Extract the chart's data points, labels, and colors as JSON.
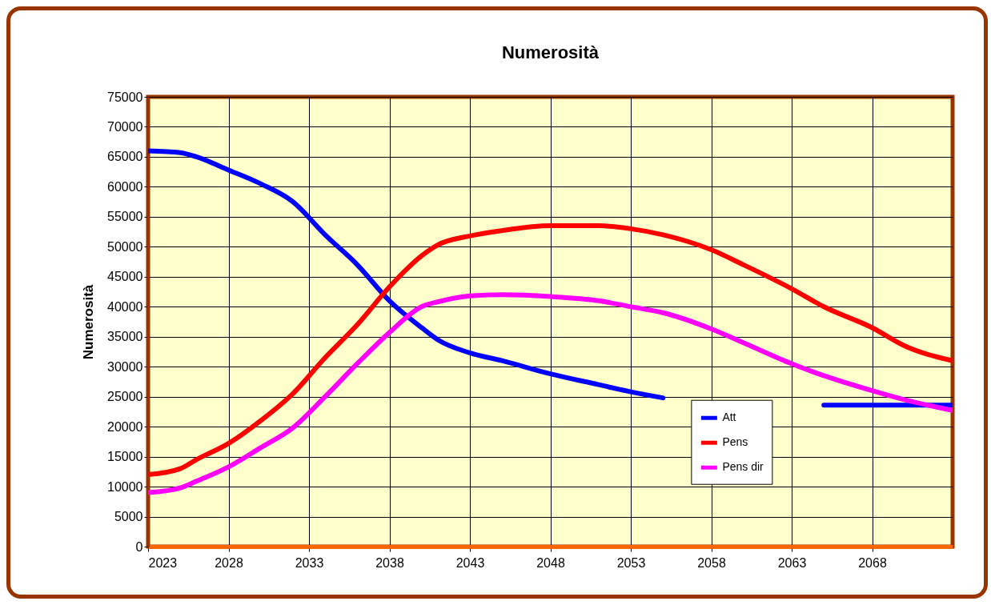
{
  "chart_data": {
    "type": "line",
    "title": "Numerosità",
    "ylabel": "Numerosità",
    "x": [
      2023,
      2025,
      2026,
      2028,
      2030,
      2032,
      2034,
      2036,
      2038,
      2040,
      2041,
      2043,
      2045,
      2048,
      2051,
      2053,
      2055,
      2058,
      2060,
      2063,
      2065,
      2068,
      2070,
      2073
    ],
    "series": [
      {
        "name": "Att",
        "color": "#0000ff",
        "values": [
          66000,
          65700,
          65000,
          62800,
          60500,
          57500,
          52000,
          47000,
          41000,
          36500,
          34500,
          32300,
          31000,
          28800,
          27000,
          25800,
          24800,
          null,
          null,
          null,
          23600,
          23600,
          23600,
          23600
        ]
      },
      {
        "name": "Pens",
        "color": "#ff0000",
        "values": [
          12000,
          13000,
          14500,
          17200,
          21000,
          25500,
          31500,
          37000,
          43300,
          48500,
          50300,
          51800,
          52700,
          53500,
          53500,
          53000,
          52000,
          49500,
          47000,
          43000,
          40000,
          36500,
          33500,
          31000
        ]
      },
      {
        "name": "Pens dir",
        "color": "#ff00ff",
        "values": [
          9000,
          9800,
          10900,
          13300,
          16500,
          19800,
          25000,
          30500,
          35700,
          40000,
          40800,
          41800,
          42000,
          41700,
          41000,
          40000,
          39000,
          36300,
          34000,
          30500,
          28500,
          26000,
          24500,
          22700
        ]
      }
    ],
    "xlim": [
      2023,
      2073
    ],
    "xticks": [
      2023,
      2028,
      2033,
      2038,
      2043,
      2048,
      2053,
      2058,
      2063,
      2068
    ],
    "ylim": [
      0,
      75000
    ],
    "yticks": [
      0,
      5000,
      10000,
      15000,
      20000,
      25000,
      30000,
      35000,
      40000,
      45000,
      50000,
      55000,
      60000,
      65000,
      70000,
      75000
    ],
    "grid": true,
    "legend": "bottom right",
    "marker": "none",
    "line_style": "solid"
  }
}
